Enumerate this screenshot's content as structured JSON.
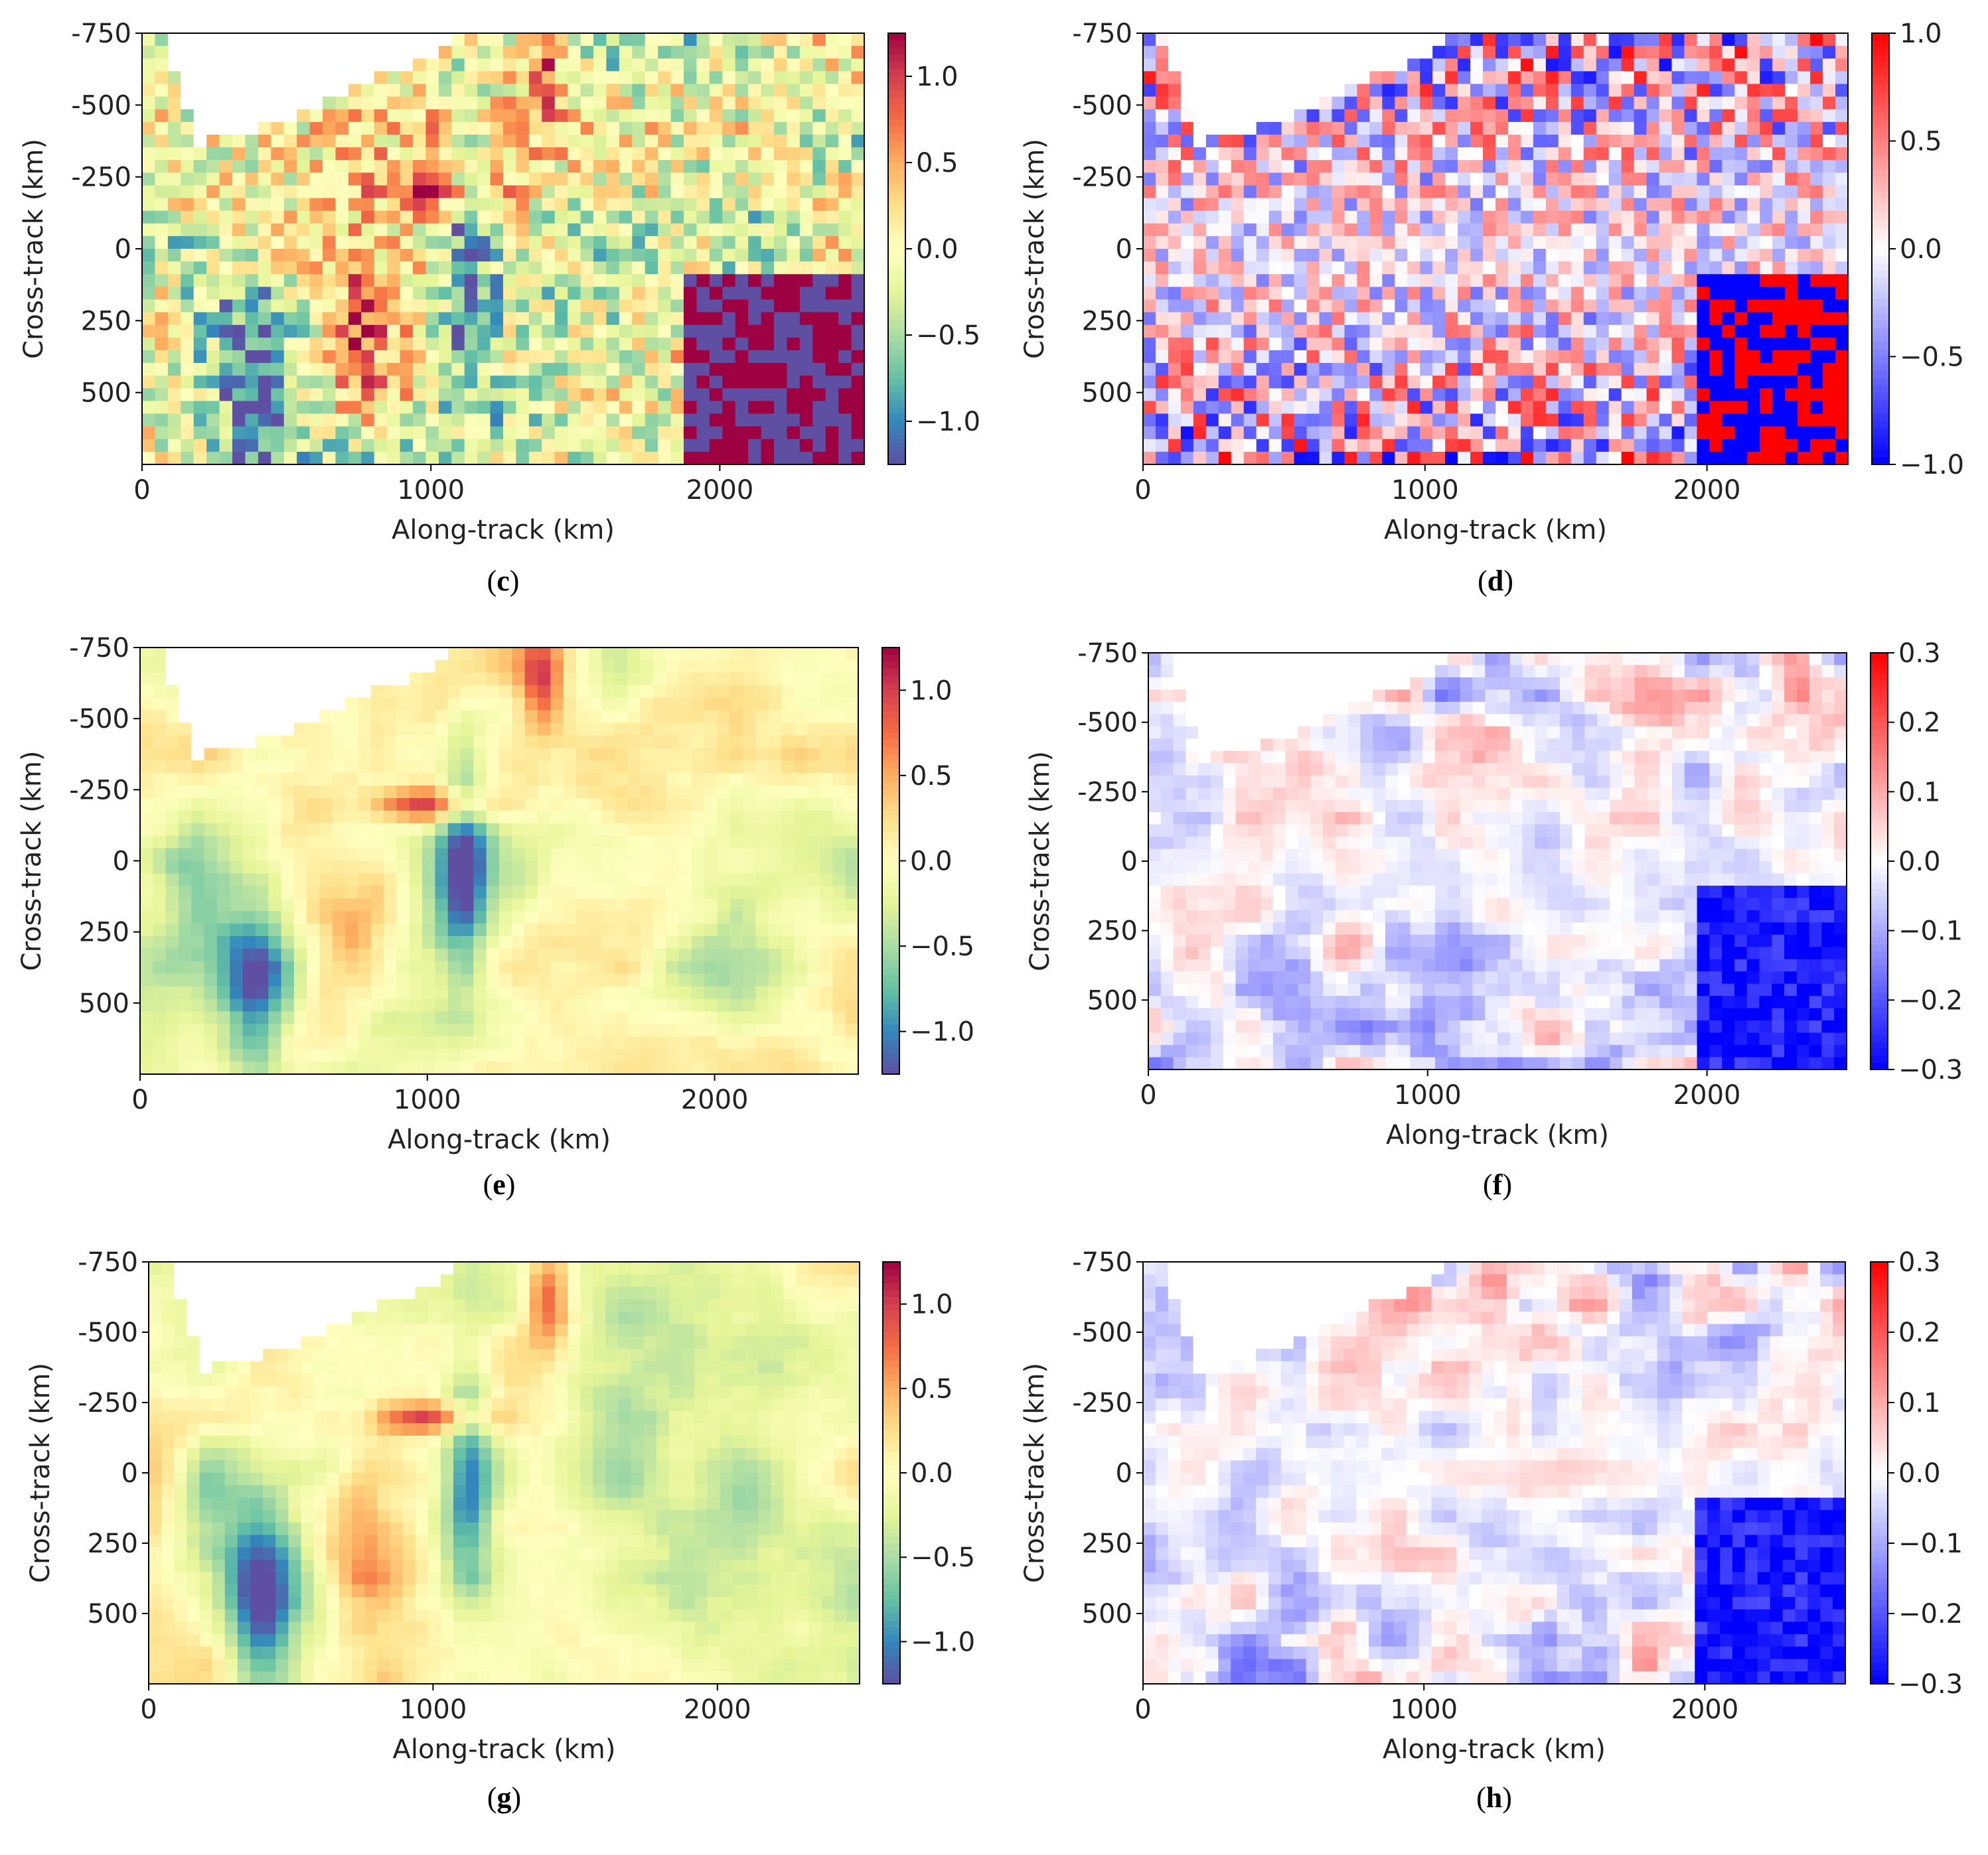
{
  "panels": [
    {
      "id": "c",
      "caption_letter": "c",
      "colormap": "spectral",
      "cbar_ticks": [
        "1.0",
        "0.5",
        "0.0",
        "−0.5",
        "−1.0"
      ],
      "cbar_values": [
        1.0,
        0.5,
        0.0,
        -0.5,
        -1.0
      ],
      "cbar_range": [
        -1.25,
        1.25
      ],
      "texture": "noisy",
      "y_tick_labels": [
        "-750",
        "-500",
        "-250",
        "0",
        "250",
        "500"
      ]
    },
    {
      "id": "d",
      "caption_letter": "d",
      "colormap": "bwr",
      "cbar_ticks": [
        "1.0",
        "0.5",
        "0.0",
        "−0.5",
        "−1.0"
      ],
      "cbar_values": [
        1.0,
        0.5,
        0.0,
        -0.5,
        -1.0
      ],
      "cbar_range": [
        -1.0,
        1.0
      ],
      "texture": "noisy",
      "y_tick_labels": [
        "-750",
        "-500",
        "-250",
        "0",
        "250",
        "500"
      ]
    },
    {
      "id": "e",
      "caption_letter": "e",
      "colormap": "spectral",
      "cbar_ticks": [
        "1.0",
        "0.5",
        "0.0",
        "−0.5",
        "−1.0"
      ],
      "cbar_values": [
        1.0,
        0.5,
        0.0,
        -0.5,
        -1.0
      ],
      "cbar_range": [
        -1.25,
        1.25
      ],
      "texture": "smooth",
      "y_tick_labels": [
        "-750",
        "-500",
        "-250",
        "0",
        "250",
        "500"
      ]
    },
    {
      "id": "f",
      "caption_letter": "f",
      "colormap": "bwr",
      "cbar_ticks": [
        "0.3",
        "0.2",
        "0.1",
        "0.0",
        "−0.1",
        "−0.2",
        "−0.3"
      ],
      "cbar_values": [
        0.3,
        0.2,
        0.1,
        0.0,
        -0.1,
        -0.2,
        -0.3
      ],
      "cbar_range": [
        -0.3,
        0.3
      ],
      "texture": "filament",
      "y_tick_labels": [
        "-750",
        "-500",
        "-250",
        "0",
        "250",
        "500"
      ]
    },
    {
      "id": "g",
      "caption_letter": "g",
      "colormap": "spectral",
      "cbar_ticks": [
        "1.0",
        "0.5",
        "0.0",
        "−0.5",
        "−1.0"
      ],
      "cbar_values": [
        1.0,
        0.5,
        0.0,
        -0.5,
        -1.0
      ],
      "cbar_range": [
        -1.25,
        1.25
      ],
      "texture": "smooth",
      "y_tick_labels": [
        "-750",
        "-500",
        "-250",
        "0",
        "250",
        "500"
      ]
    },
    {
      "id": "h",
      "caption_letter": "h",
      "colormap": "bwr",
      "cbar_ticks": [
        "0.3",
        "0.2",
        "0.1",
        "0.0",
        "−0.1",
        "−0.2",
        "−0.3"
      ],
      "cbar_values": [
        0.3,
        0.2,
        0.1,
        0.0,
        -0.1,
        -0.2,
        -0.3
      ],
      "cbar_range": [
        -0.3,
        0.3
      ],
      "texture": "filament",
      "y_tick_labels": [
        "-750",
        "-500",
        "-250",
        "0",
        "250",
        "500"
      ]
    }
  ],
  "chart_data": [
    {
      "type": "heatmap",
      "panel": "c",
      "xlabel": "Along-track (km)",
      "ylabel": "Cross-track (km)",
      "xlim": [
        0,
        2500
      ],
      "ylim": [
        -750,
        750
      ],
      "x_ticks": [
        0,
        1000,
        2000
      ],
      "y_ticks": [
        -750,
        -500,
        -250,
        0,
        250,
        500
      ],
      "colorbar_ticks": [
        1.0,
        0.5,
        0.0,
        -0.5,
        -1.0
      ],
      "colormap": "Spectral_r"
    },
    {
      "type": "heatmap",
      "panel": "d",
      "xlabel": "Along-track (km)",
      "ylabel": "Cross-track (km)",
      "xlim": [
        0,
        2500
      ],
      "ylim": [
        -750,
        750
      ],
      "x_ticks": [
        0,
        1000,
        2000
      ],
      "y_ticks": [
        -750,
        -500,
        -250,
        0,
        250,
        500
      ],
      "colorbar_ticks": [
        1.0,
        0.5,
        0.0,
        -0.5,
        -1.0
      ],
      "colormap": "bwr"
    },
    {
      "type": "heatmap",
      "panel": "e",
      "xlabel": "Along-track (km)",
      "ylabel": "Cross-track (km)",
      "xlim": [
        0,
        2500
      ],
      "ylim": [
        -750,
        750
      ],
      "x_ticks": [
        0,
        1000,
        2000
      ],
      "y_ticks": [
        -750,
        -500,
        -250,
        0,
        250,
        500
      ],
      "colorbar_ticks": [
        1.0,
        0.5,
        0.0,
        -0.5,
        -1.0
      ],
      "colormap": "Spectral_r"
    },
    {
      "type": "heatmap",
      "panel": "f",
      "xlabel": "Along-track (km)",
      "ylabel": "Cross-track (km)",
      "xlim": [
        0,
        2500
      ],
      "ylim": [
        -750,
        750
      ],
      "x_ticks": [
        0,
        1000,
        2000
      ],
      "y_ticks": [
        -750,
        -500,
        -250,
        0,
        250,
        500
      ],
      "colorbar_ticks": [
        0.3,
        0.2,
        0.1,
        0.0,
        -0.1,
        -0.2,
        -0.3
      ],
      "colormap": "bwr"
    },
    {
      "type": "heatmap",
      "panel": "g",
      "xlabel": "Along-track (km)",
      "ylabel": "Cross-track (km)",
      "xlim": [
        0,
        2500
      ],
      "ylim": [
        -750,
        750
      ],
      "x_ticks": [
        0,
        1000,
        2000
      ],
      "y_ticks": [
        -750,
        -500,
        -250,
        0,
        250,
        500
      ],
      "colorbar_ticks": [
        1.0,
        0.5,
        0.0,
        -0.5,
        -1.0
      ],
      "colormap": "Spectral_r"
    },
    {
      "type": "heatmap",
      "panel": "h",
      "xlabel": "Along-track (km)",
      "ylabel": "Cross-track (km)",
      "xlim": [
        0,
        2500
      ],
      "ylim": [
        -750,
        750
      ],
      "x_ticks": [
        0,
        1000,
        2000
      ],
      "y_ticks": [
        -750,
        -500,
        -250,
        0,
        250,
        500
      ],
      "colorbar_ticks": [
        0.3,
        0.2,
        0.1,
        0.0,
        -0.1,
        -0.2,
        -0.3
      ],
      "colormap": "bwr"
    }
  ],
  "axes": {
    "xlabel": "Along-track (km)",
    "ylabel": "Cross-track (km)",
    "x_tick_labels": [
      "0",
      "1000",
      "2000"
    ],
    "x_tick_values": [
      0,
      1000,
      2000
    ],
    "y_tick_values": [
      -750,
      -500,
      -250,
      0,
      250,
      500
    ],
    "xlim": [
      0,
      2500
    ],
    "ylim": [
      -750,
      750
    ]
  },
  "colors": {
    "spectral": [
      "#5e4fa2",
      "#3288bd",
      "#66c2a5",
      "#abdda4",
      "#e6f598",
      "#ffffbf",
      "#fee08b",
      "#fdae61",
      "#f46d43",
      "#d53e4f",
      "#9e0142"
    ],
    "bwr": [
      "#0000ff",
      "#ffffff",
      "#ff0000"
    ],
    "land": "#ffffff"
  }
}
